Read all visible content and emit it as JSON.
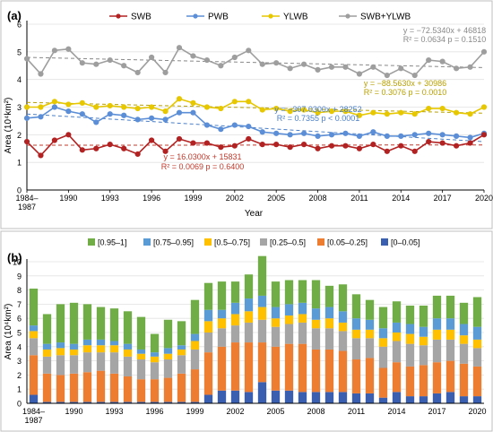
{
  "figure": {
    "colors": {
      "SWB": "#b22222",
      "PWB": "#5b8ed6",
      "YLWB": "#e6c700",
      "SWB+YLWB": "#9e9e9e",
      "trend_SWB": "#c0392b",
      "trend_PWB": "#4a7fc8",
      "trend_YLWB": "#b8a000",
      "trend_total": "#888888",
      "stack": [
        "#3a5fb0",
        "#ed7d31",
        "#a5a5a5",
        "#ffc000",
        "#5b9bd5",
        "#70ad47"
      ]
    }
  },
  "chart_data": [
    {
      "panel_label": "(a)",
      "type": "line",
      "xlabel": "Year",
      "ylabel": "Area (10⁴km²)",
      "ylim": [
        0,
        6
      ],
      "yticks": [
        0,
        1,
        2,
        3,
        4,
        5,
        6
      ],
      "x": [
        1987,
        1988,
        1989,
        1990,
        1991,
        1992,
        1993,
        1994,
        1995,
        1996,
        1997,
        1998,
        1999,
        2000,
        2001,
        2002,
        2003,
        2004,
        2005,
        2006,
        2007,
        2008,
        2009,
        2010,
        2011,
        2012,
        2013,
        2014,
        2015,
        2016,
        2017,
        2018,
        2019,
        2020
      ],
      "xtick_labels": [
        "1984–\n1987",
        "1990",
        "1993",
        "1996",
        "1999",
        "2002",
        "2005",
        "2008",
        "2011",
        "2014",
        "2017",
        "2020"
      ],
      "xtick_values": [
        1987,
        1990,
        1993,
        1996,
        1999,
        2002,
        2005,
        2008,
        2011,
        2014,
        2017,
        2020
      ],
      "legend": [
        "SWB",
        "PWB",
        "YLWB",
        "SWB+YLWB"
      ],
      "legend_placement": "top",
      "series": [
        {
          "name": "SWB",
          "values": [
            1.75,
            1.25,
            1.8,
            2.0,
            1.45,
            1.5,
            1.65,
            1.5,
            1.3,
            1.8,
            1.4,
            1.85,
            1.7,
            1.7,
            1.55,
            1.6,
            1.85,
            1.65,
            1.65,
            1.55,
            1.65,
            1.5,
            1.6,
            1.6,
            1.5,
            1.65,
            1.4,
            1.6,
            1.4,
            1.75,
            1.7,
            1.6,
            1.7,
            2.0
          ]
        },
        {
          "name": "PWB",
          "values": [
            2.6,
            2.65,
            3.0,
            2.85,
            2.75,
            2.45,
            2.75,
            2.7,
            2.55,
            2.6,
            2.55,
            2.8,
            2.8,
            2.35,
            2.2,
            2.35,
            2.3,
            2.1,
            2.05,
            2.0,
            2.05,
            1.95,
            2.0,
            2.05,
            1.95,
            2.1,
            1.95,
            1.95,
            2.0,
            2.05,
            2.0,
            1.95,
            1.9,
            2.05
          ]
        },
        {
          "name": "YLWB",
          "values": [
            3.0,
            3.0,
            3.2,
            3.1,
            3.15,
            3.0,
            3.05,
            3.0,
            2.95,
            3.0,
            2.85,
            3.3,
            3.15,
            3.0,
            2.95,
            3.2,
            3.2,
            2.9,
            2.95,
            2.85,
            2.9,
            2.8,
            2.85,
            2.85,
            2.7,
            2.8,
            2.75,
            2.8,
            2.75,
            2.95,
            2.95,
            2.8,
            2.75,
            3.0
          ]
        },
        {
          "name": "SWB+YLWB",
          "values": [
            4.75,
            4.2,
            5.05,
            5.1,
            4.6,
            4.55,
            4.7,
            4.5,
            4.25,
            4.8,
            4.25,
            5.15,
            4.85,
            4.7,
            4.5,
            4.8,
            5.05,
            4.55,
            4.6,
            4.4,
            4.55,
            4.35,
            4.45,
            4.45,
            4.2,
            4.45,
            4.15,
            4.4,
            4.15,
            4.7,
            4.65,
            4.4,
            4.45,
            5.0
          ]
        }
      ],
      "trendlines": [
        {
          "series": "SWB",
          "equation": "y = 16.0300x + 15831",
          "r2": "R² = 0.0069 p = 0.6400",
          "start": 1.62,
          "end": 1.63
        },
        {
          "series": "PWB",
          "equation": "y = −307.0300x + 28252",
          "r2": "R² = 0.7355 p < 0.0001",
          "start": 2.75,
          "end": 1.75
        },
        {
          "series": "YLWB",
          "equation": "y = −88.5630x + 30986",
          "r2": "R² = 0.3076 p = 0.0010",
          "start": 3.17,
          "end": 2.78
        },
        {
          "series": "SWB+YLWB",
          "equation": "y = −72.5340x + 46818",
          "r2": "R² = 0.0634 p = 0.1510",
          "start": 4.8,
          "end": 4.43
        }
      ]
    },
    {
      "panel_label": "(b)",
      "type": "bar",
      "stacked": true,
      "xlabel": "",
      "ylabel": "Area (10⁴km²)",
      "ylim": [
        0,
        10
      ],
      "yticks": [
        0,
        1,
        2,
        3,
        4,
        5,
        6,
        7,
        8,
        9,
        10
      ],
      "categories": [
        1987,
        1988,
        1989,
        1990,
        1991,
        1992,
        1993,
        1994,
        1995,
        1996,
        1997,
        1998,
        1999,
        2000,
        2001,
        2002,
        2003,
        2004,
        2005,
        2006,
        2007,
        2008,
        2009,
        2010,
        2011,
        2012,
        2013,
        2014,
        2015,
        2016,
        2017,
        2018,
        2019,
        2020
      ],
      "xtick_labels": [
        "1984–\n1987",
        "1990",
        "1993",
        "1996",
        "1999",
        "2002",
        "2005",
        "2008",
        "2011",
        "2014",
        "2017",
        "2020"
      ],
      "xtick_values": [
        1987,
        1990,
        1993,
        1996,
        1999,
        2002,
        2005,
        2008,
        2011,
        2014,
        2017,
        2020
      ],
      "legend_placement": "top",
      "series": [
        {
          "name": "[0–0.05]",
          "values": [
            0.6,
            0.1,
            0.1,
            0.1,
            0.1,
            0.1,
            0.1,
            0.1,
            0.1,
            0.1,
            0.1,
            0.1,
            0.1,
            0.6,
            0.9,
            0.9,
            0.8,
            1.5,
            0.9,
            0.9,
            0.8,
            0.8,
            0.8,
            0.8,
            0.7,
            0.7,
            0.4,
            0.8,
            0.5,
            0.5,
            0.7,
            0.8,
            0.5,
            0.5
          ]
        },
        {
          "name": "[0.05–0.25]",
          "values": [
            2.8,
            2.0,
            1.9,
            2.0,
            2.1,
            2.2,
            2.0,
            1.8,
            1.6,
            1.6,
            1.7,
            2.0,
            2.3,
            3.0,
            3.1,
            3.4,
            3.5,
            2.8,
            3.1,
            3.3,
            3.4,
            3.0,
            3.0,
            2.9,
            2.4,
            2.5,
            2.1,
            2.1,
            2.1,
            2.2,
            2.2,
            2.2,
            2.3,
            2.1
          ]
        },
        {
          "name": "[0.25–0.5]",
          "values": [
            1.2,
            1.2,
            1.4,
            1.3,
            1.4,
            1.3,
            1.5,
            1.4,
            1.4,
            1.2,
            1.3,
            1.3,
            1.4,
            1.4,
            1.3,
            1.2,
            1.4,
            1.6,
            1.4,
            1.4,
            1.5,
            1.5,
            1.5,
            1.4,
            1.5,
            1.4,
            1.5,
            1.5,
            1.6,
            1.4,
            1.6,
            1.5,
            1.4,
            1.3
          ]
        },
        {
          "name": "[0.5–0.75]",
          "values": [
            0.5,
            0.5,
            0.5,
            0.4,
            0.5,
            0.5,
            0.5,
            0.5,
            0.4,
            0.4,
            0.4,
            0.4,
            0.6,
            0.8,
            0.7,
            0.8,
            0.8,
            0.9,
            0.6,
            0.6,
            0.6,
            0.6,
            0.7,
            0.6,
            0.6,
            0.6,
            0.6,
            0.6,
            0.7,
            0.6,
            0.7,
            0.7,
            0.6,
            0.6
          ]
        },
        {
          "name": "[0.75–0.95]",
          "values": [
            0.4,
            0.4,
            0.4,
            0.4,
            0.4,
            0.4,
            0.3,
            0.4,
            0.3,
            0.3,
            0.4,
            0.3,
            0.5,
            0.8,
            0.6,
            0.8,
            0.9,
            0.8,
            0.8,
            0.8,
            0.8,
            0.8,
            0.8,
            0.8,
            0.8,
            0.7,
            0.7,
            0.7,
            0.7,
            0.7,
            0.8,
            0.8,
            0.8,
            0.9
          ]
        },
        {
          "name": "[0.95–1]",
          "values": [
            2.6,
            2.1,
            2.7,
            2.9,
            2.5,
            2.3,
            2.3,
            2.3,
            2.3,
            1.3,
            2.0,
            1.7,
            2.4,
            1.9,
            2.0,
            1.5,
            1.7,
            2.8,
            1.8,
            1.7,
            1.6,
            2.0,
            1.5,
            1.9,
            1.7,
            1.4,
            1.5,
            1.5,
            1.3,
            1.5,
            1.6,
            1.6,
            1.5,
            2.1
          ]
        }
      ]
    }
  ]
}
